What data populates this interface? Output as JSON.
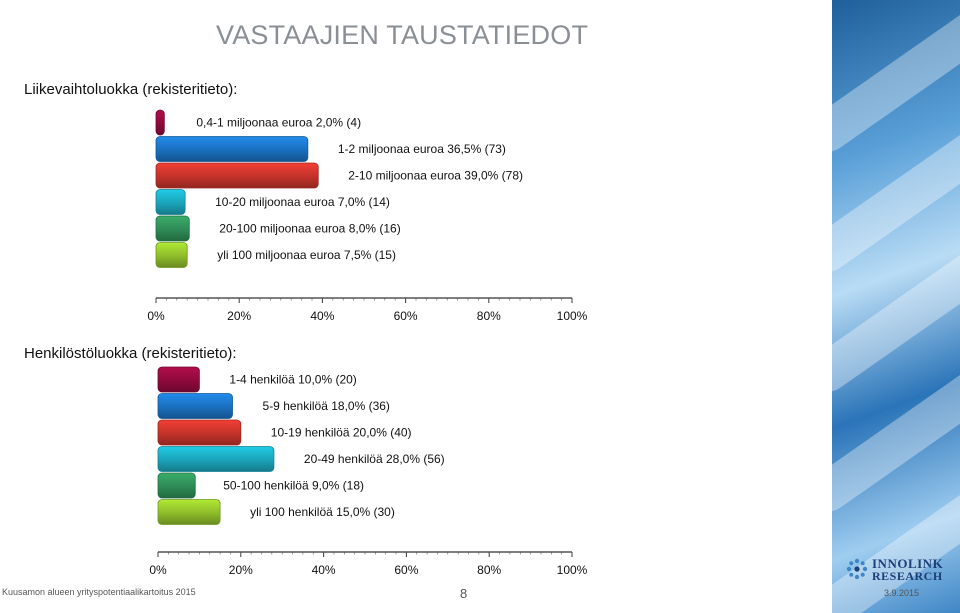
{
  "page": {
    "title": "VASTAAJIEN TAUSTATIEDOT",
    "footer_left": "Kuusamon alueen yrityspotentiaalikartoitus 2015",
    "page_number": "8",
    "footer_date": "3.9.2015",
    "logo_line1": "INNOLINK",
    "logo_line2": "RESEARCH"
  },
  "chart_data": [
    {
      "type": "bar",
      "orientation": "horizontal",
      "title": "Liikevaihtoluokka (rekisteritieto):",
      "xlim": [
        0,
        100
      ],
      "x_ticks": [
        "0%",
        "20%",
        "40%",
        "60%",
        "80%",
        "100%"
      ],
      "categories": [
        "0,4-1 miljoonaa euroa",
        "1-2 miljoonaa euroa",
        "2-10 miljoonaa euroa",
        "10-20 miljoonaa euroa",
        "20-100 miljoonaa euroa",
        "yli 100 miljoonaa euroa"
      ],
      "values": [
        2.0,
        36.5,
        39.0,
        7.0,
        8.0,
        7.5
      ],
      "counts": [
        4,
        73,
        78,
        14,
        16,
        15
      ],
      "labels": [
        "0,4-1 miljoonaa euroa 2,0% (4)",
        "1-2 miljoonaa euroa 36,5% (73)",
        "2-10 miljoonaa euroa 39,0% (78)",
        "10-20 miljoonaa euroa 7,0% (14)",
        "20-100 miljoonaa euroa 8,0% (16)",
        "yli 100 miljoonaa euroa 7,5% (15)"
      ],
      "colors": [
        "#8e0a3c",
        "#1a6fbd",
        "#c2322a",
        "#1aa3b8",
        "#2e8a55",
        "#8dbb2a"
      ]
    },
    {
      "type": "bar",
      "orientation": "horizontal",
      "title": "Henkilöstöluokka (rekisteritieto):",
      "xlim": [
        0,
        100
      ],
      "x_ticks": [
        "0%",
        "20%",
        "40%",
        "60%",
        "80%",
        "100%"
      ],
      "categories": [
        "1-4 henkilöä",
        "5-9 henkilöä",
        "10-19 henkilöä",
        "20-49 henkilöä",
        "50-100 henkilöä",
        "yli 100 henkilöä"
      ],
      "values": [
        10.0,
        18.0,
        20.0,
        28.0,
        9.0,
        15.0
      ],
      "counts": [
        20,
        36,
        40,
        56,
        18,
        30
      ],
      "labels": [
        "1-4 henkilöä 10,0% (20)",
        "5-9 henkilöä 18,0% (36)",
        "10-19 henkilöä 20,0% (40)",
        "20-49 henkilöä 28,0% (56)",
        "50-100 henkilöä 9,0% (18)",
        "yli 100 henkilöä 15,0% (30)"
      ],
      "colors": [
        "#8e0a3c",
        "#1a6fbd",
        "#c2322a",
        "#1aa3b8",
        "#2e8a55",
        "#8dbb2a"
      ]
    }
  ]
}
